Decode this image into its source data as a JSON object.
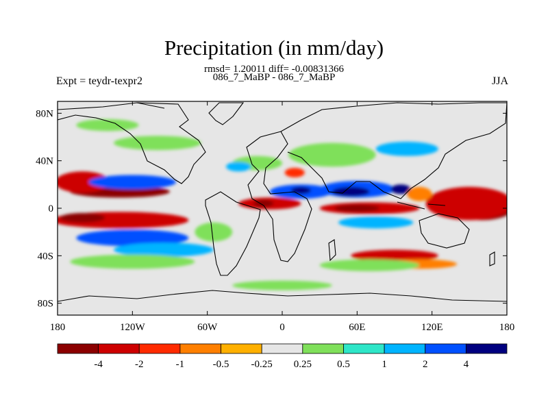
{
  "chart_data": {
    "type": "heatmap",
    "title": "Precipitation (in mm/day)",
    "subtitle": "rmsd= 1.20011 diff= -0.00831366",
    "comparison": "086_7_MaBP - 086_7_MaBP",
    "left_label": "Expt = teydr-texpr2",
    "right_label": "JJA",
    "x_ticks": [
      "180",
      "120W",
      "60W",
      "0",
      "60E",
      "120E",
      "180"
    ],
    "x_tick_values": [
      -180,
      -120,
      -60,
      0,
      60,
      120,
      180
    ],
    "y_ticks": [
      "80N",
      "40N",
      "0",
      "40S",
      "80S"
    ],
    "y_tick_values": [
      80,
      40,
      0,
      -40,
      -80
    ],
    "xlim": [
      -180,
      180
    ],
    "ylim": [
      -90,
      90
    ],
    "colorbar": {
      "levels": [
        "-4",
        "-2",
        "-1",
        "-0.5",
        "-0.25",
        "0.25",
        "0.5",
        "1",
        "2",
        "4"
      ],
      "colors": [
        "#8b0000",
        "#cd0000",
        "#ff2a00",
        "#ff7f00",
        "#ffb000",
        "#e6e6e6",
        "#7fe05a",
        "#2ee6c8",
        "#00b4ff",
        "#0050ff",
        "#00007f"
      ]
    },
    "features": [
      {
        "name": "eq-pacific-dry",
        "lon": -130,
        "lat": 14,
        "rx": 40,
        "ry": 5,
        "level": 0
      },
      {
        "name": "eq-pacific-dry-core",
        "lon": -135,
        "lat": 14,
        "rx": 12,
        "ry": 3,
        "level": 0
      },
      {
        "name": "n-pacific-red",
        "lon": -160,
        "lat": 22,
        "rx": 22,
        "ry": 9,
        "level": 1
      },
      {
        "name": "e-pacific-blue",
        "lon": -120,
        "lat": 22,
        "rx": 35,
        "ry": 6,
        "level": 9
      },
      {
        "name": "s-pacific-red-band",
        "lon": -130,
        "lat": -10,
        "rx": 55,
        "ry": 7,
        "level": 1
      },
      {
        "name": "s-pacific-dark",
        "lon": -160,
        "lat": -8,
        "rx": 18,
        "ry": 4,
        "level": 0
      },
      {
        "name": "s-pacific-blue",
        "lon": -120,
        "lat": -25,
        "rx": 45,
        "ry": 7,
        "level": 9
      },
      {
        "name": "s-pacific-cyan",
        "lon": -95,
        "lat": -35,
        "rx": 40,
        "ry": 6,
        "level": 8
      },
      {
        "name": "s-pacific-green",
        "lon": -120,
        "lat": -45,
        "rx": 50,
        "ry": 6,
        "level": 6
      },
      {
        "name": "atl-itcz-red",
        "lon": -10,
        "lat": 4,
        "rx": 25,
        "ry": 5,
        "level": 1
      },
      {
        "name": "atl-itcz-dark",
        "lon": -15,
        "lat": 4,
        "rx": 8,
        "ry": 3,
        "level": 0
      },
      {
        "name": "africa-blue",
        "lon": 15,
        "lat": 14,
        "rx": 25,
        "ry": 6,
        "level": 9
      },
      {
        "name": "sahel-dark",
        "lon": 15,
        "lat": 15,
        "rx": 8,
        "ry": 3,
        "level": 10
      },
      {
        "name": "arabia-blue",
        "lon": 60,
        "lat": 16,
        "rx": 30,
        "ry": 7,
        "level": 9
      },
      {
        "name": "arabia-dark",
        "lon": 55,
        "lat": 14,
        "rx": 15,
        "ry": 4,
        "level": 10
      },
      {
        "name": "india-dark",
        "lon": 95,
        "lat": 16,
        "rx": 8,
        "ry": 4,
        "level": 10
      },
      {
        "name": "io-red",
        "lon": 70,
        "lat": 0,
        "rx": 40,
        "ry": 5,
        "level": 1
      },
      {
        "name": "io-dark",
        "lon": 60,
        "lat": 0,
        "rx": 18,
        "ry": 3,
        "level": 0
      },
      {
        "name": "io-cyan",
        "lon": 75,
        "lat": -12,
        "rx": 30,
        "ry": 5,
        "level": 8
      },
      {
        "name": "wpac-dark",
        "lon": 160,
        "lat": 0,
        "rx": 25,
        "ry": 10,
        "level": 0
      },
      {
        "name": "wpac-red",
        "lon": 150,
        "lat": 4,
        "rx": 35,
        "ry": 14,
        "level": 1
      },
      {
        "name": "asia-orange",
        "lon": 110,
        "lat": 12,
        "rx": 10,
        "ry": 6,
        "level": 3
      },
      {
        "name": "so-red",
        "lon": 90,
        "lat": -40,
        "rx": 35,
        "ry": 5,
        "level": 1
      },
      {
        "name": "so-orange",
        "lon": 110,
        "lat": -47,
        "rx": 30,
        "ry": 4,
        "level": 3
      },
      {
        "name": "so-green",
        "lon": 70,
        "lat": -48,
        "rx": 40,
        "ry": 5,
        "level": 6
      },
      {
        "name": "n-atl-green",
        "lon": -20,
        "lat": 38,
        "rx": 20,
        "ry": 6,
        "level": 6
      },
      {
        "name": "n-atl-blue",
        "lon": -35,
        "lat": 35,
        "rx": 10,
        "ry": 4,
        "level": 8
      },
      {
        "name": "europe-orange",
        "lon": 10,
        "lat": 30,
        "rx": 8,
        "ry": 4,
        "level": 2
      },
      {
        "name": "siberia-cyan",
        "lon": 100,
        "lat": 50,
        "rx": 25,
        "ry": 6,
        "level": 8
      },
      {
        "name": "asia-green",
        "lon": 40,
        "lat": 45,
        "rx": 35,
        "ry": 10,
        "level": 6
      },
      {
        "name": "canada-green",
        "lon": -100,
        "lat": 55,
        "rx": 35,
        "ry": 6,
        "level": 6
      },
      {
        "name": "arctic-green",
        "lon": -140,
        "lat": 70,
        "rx": 25,
        "ry": 5,
        "level": 6
      },
      {
        "name": "sam-green",
        "lon": -55,
        "lat": -20,
        "rx": 15,
        "ry": 8,
        "level": 6
      },
      {
        "name": "antarctic-green",
        "lon": 0,
        "lat": -65,
        "rx": 40,
        "ry": 4,
        "level": 6
      }
    ]
  }
}
